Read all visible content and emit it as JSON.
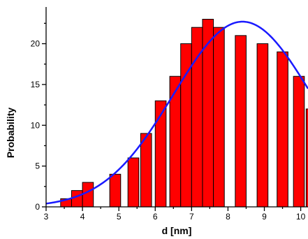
{
  "chart_data": {
    "type": "bar",
    "title": "",
    "xlabel": "d [nm]",
    "ylabel": "Probability",
    "xlim": [
      3,
      10.2
    ],
    "ylim": [
      0,
      24.5
    ],
    "xticks": [
      3,
      4,
      5,
      6,
      7,
      8,
      9,
      10
    ],
    "yticks": [
      0,
      5,
      10,
      15,
      20
    ],
    "grid": false,
    "legend": "none",
    "bar_width": 0.3,
    "bars": [
      {
        "x": 3.55,
        "value": 1
      },
      {
        "x": 3.85,
        "value": 2
      },
      {
        "x": 4.15,
        "value": 3
      },
      {
        "x": 4.9,
        "value": 4
      },
      {
        "x": 5.4,
        "value": 6
      },
      {
        "x": 5.75,
        "value": 9
      },
      {
        "x": 6.15,
        "value": 13
      },
      {
        "x": 6.55,
        "value": 16
      },
      {
        "x": 6.85,
        "value": 20
      },
      {
        "x": 7.15,
        "value": 22
      },
      {
        "x": 7.45,
        "value": 23
      },
      {
        "x": 7.75,
        "value": 22
      },
      {
        "x": 8.35,
        "value": 21
      },
      {
        "x": 8.95,
        "value": 20
      },
      {
        "x": 9.5,
        "value": 19
      },
      {
        "x": 9.95,
        "value": 16
      },
      {
        "x": 10.3,
        "value": 12
      }
    ],
    "fit_curve": {
      "type": "gaussian",
      "amplitude": 22.7,
      "center": 8.4,
      "sigma": 1.9,
      "color": "#1a1aff"
    },
    "bar_color": "#ff0000",
    "bar_edge_color": "#000000"
  }
}
